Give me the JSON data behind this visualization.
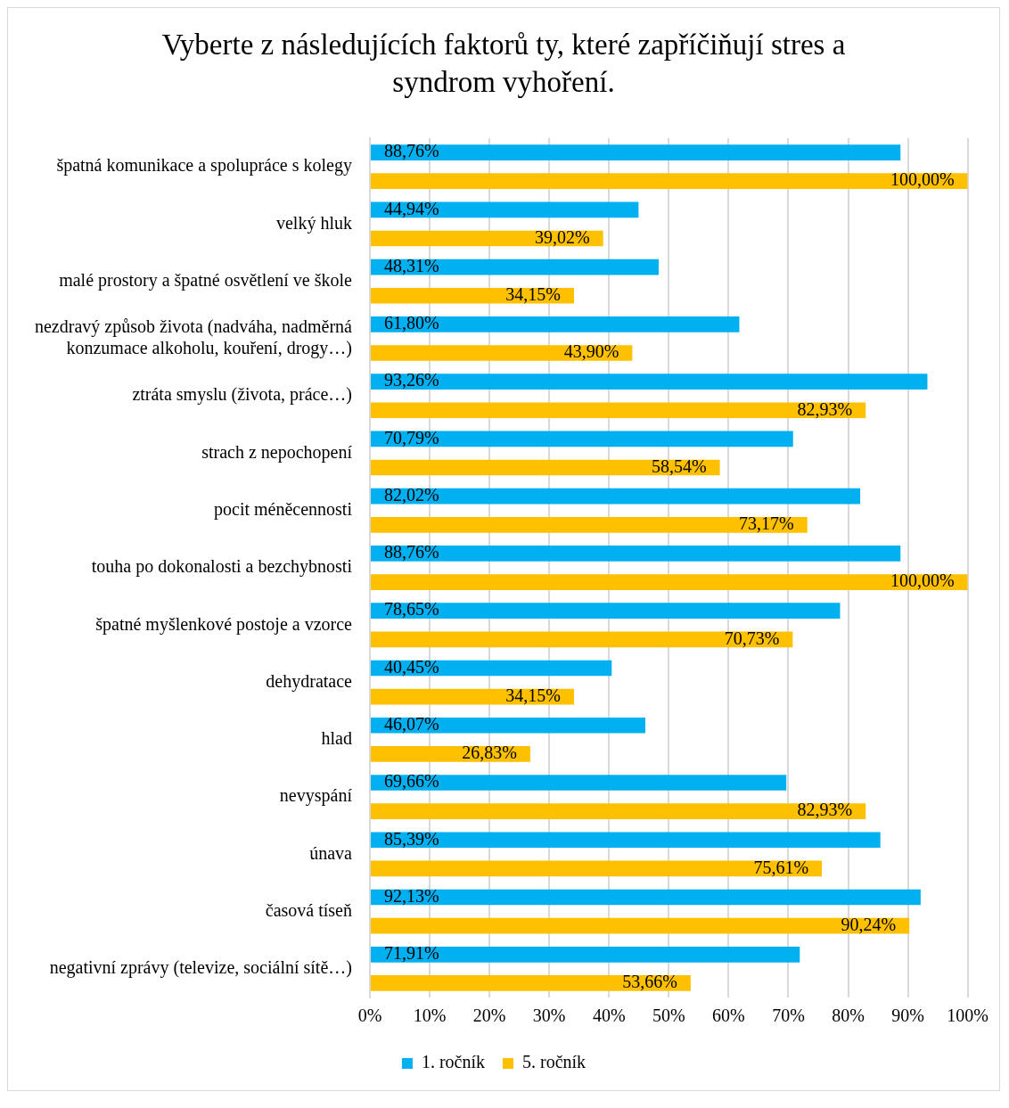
{
  "chart_data": {
    "type": "bar",
    "orientation": "horizontal",
    "title": "Vyberte z následujících faktorů ty, které zapříčiňují stres a syndrom vyhoření.",
    "categories": [
      "špatná komunikace a spolupráce s kolegy",
      "velký hluk",
      "malé prostory a špatné osvětlení ve škole",
      "nezdravý způsob života (nadváha, nadměrná konzumace alkoholu, kouření, drogy…)",
      "ztráta smyslu (života, práce…)",
      "strach z nepochopení",
      "pocit méněcennosti",
      "touha po dokonalosti a bezchybnosti",
      "špatné myšlenkové postoje a vzorce",
      "dehydratace",
      "hlad",
      "nevyspání",
      "únava",
      "časová tíseň",
      "negativní zprávy (televize, sociální sítě…)"
    ],
    "series": [
      {
        "name": "1. ročník",
        "color": "#00b0f0",
        "values": [
          88.76,
          44.94,
          48.31,
          61.8,
          93.26,
          70.79,
          82.02,
          88.76,
          78.65,
          40.45,
          46.07,
          69.66,
          85.39,
          92.13,
          71.91
        ],
        "value_labels": [
          "88,76%",
          "44,94%",
          "48,31%",
          "61,80%",
          "93,26%",
          "70,79%",
          "82,02%",
          "88,76%",
          "78,65%",
          "40,45%",
          "46,07%",
          "69,66%",
          "85,39%",
          "92,13%",
          "71,91%"
        ]
      },
      {
        "name": "5. ročník",
        "color": "#ffc000",
        "values": [
          100,
          39.02,
          34.15,
          43.9,
          82.93,
          58.54,
          73.17,
          100,
          70.73,
          34.15,
          26.83,
          82.93,
          75.61,
          90.24,
          53.66
        ],
        "value_labels": [
          "100,00%",
          "39,02%",
          "34,15%",
          "43,90%",
          "82,93%",
          "58,54%",
          "73,17%",
          "100,00%",
          "70,73%",
          "34,15%",
          "26,83%",
          "82,93%",
          "75,61%",
          "90,24%",
          "53,66%"
        ]
      }
    ],
    "xlim": [
      0,
      100
    ],
    "xticks": [
      {
        "value": 0,
        "label": "0%"
      },
      {
        "value": 10,
        "label": "10%"
      },
      {
        "value": 20,
        "label": "20%"
      },
      {
        "value": 30,
        "label": "30%"
      },
      {
        "value": 40,
        "label": "40%"
      },
      {
        "value": 50,
        "label": "50%"
      },
      {
        "value": 60,
        "label": "60%"
      },
      {
        "value": 70,
        "label": "70%"
      },
      {
        "value": 80,
        "label": "80%"
      },
      {
        "value": 90,
        "label": "90%"
      },
      {
        "value": 100,
        "label": "100%"
      }
    ],
    "grid": "x",
    "legend": "bottom"
  }
}
